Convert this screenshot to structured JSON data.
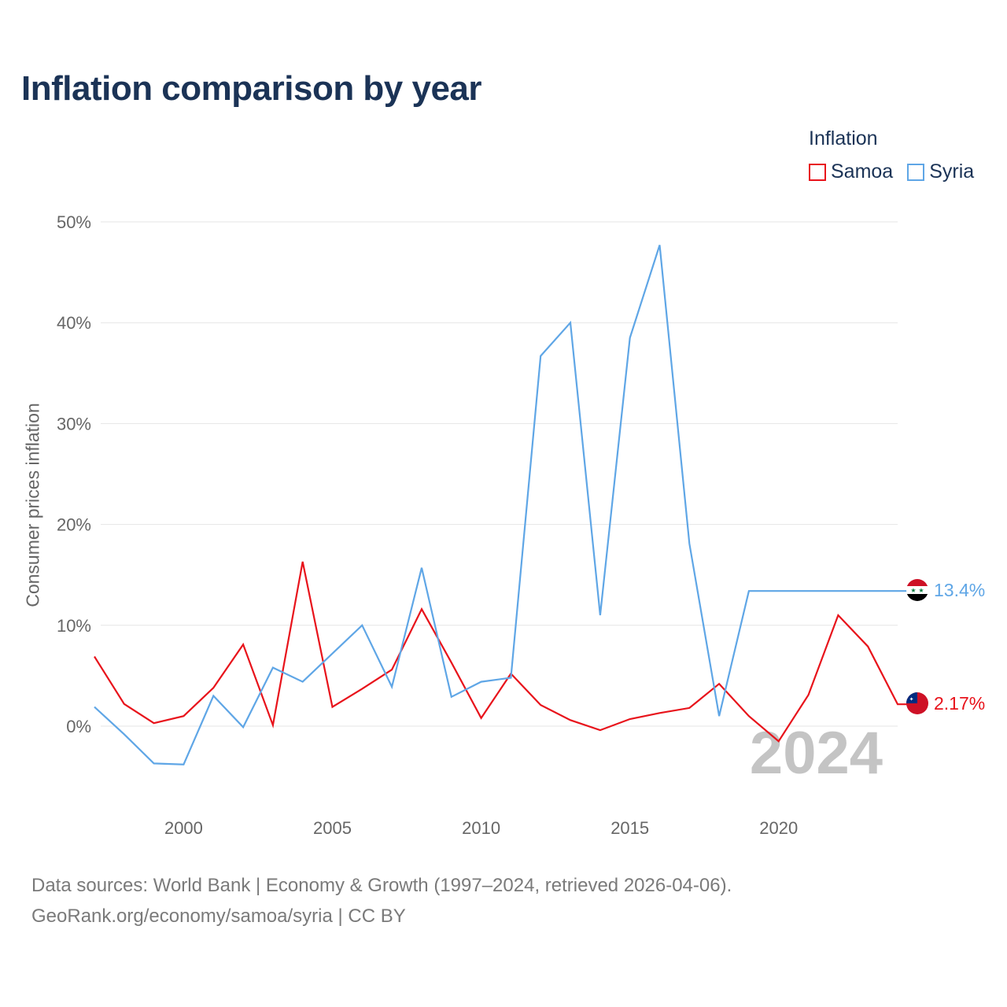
{
  "title": "Inflation comparison by year",
  "legend": {
    "title": "Inflation",
    "items": [
      {
        "label": "Samoa",
        "color": "#e8131b"
      },
      {
        "label": "Syria",
        "color": "#5fa6e6"
      }
    ]
  },
  "chart_data": {
    "type": "line",
    "title": "Inflation comparison by year",
    "xlabel": "",
    "ylabel": "Consumer prices inflation",
    "x": [
      1997,
      1998,
      1999,
      2000,
      2001,
      2002,
      2003,
      2004,
      2005,
      2006,
      2007,
      2008,
      2009,
      2010,
      2011,
      2012,
      2013,
      2014,
      2015,
      2016,
      2017,
      2018,
      2019,
      2020,
      2021,
      2022,
      2023,
      2024
    ],
    "series": [
      {
        "name": "Samoa",
        "color": "#e8131b",
        "values": [
          6.9,
          2.2,
          0.3,
          1.0,
          3.8,
          8.1,
          0.1,
          16.3,
          1.9,
          3.7,
          5.6,
          11.6,
          6.3,
          0.8,
          5.2,
          2.1,
          0.6,
          -0.4,
          0.7,
          1.3,
          1.8,
          4.2,
          1.0,
          -1.5,
          3.1,
          11.0,
          7.9,
          2.17
        ],
        "end_label": "2.17%"
      },
      {
        "name": "Syria",
        "color": "#5fa6e6",
        "values": [
          1.9,
          -0.8,
          -3.7,
          -3.8,
          3.0,
          -0.1,
          5.8,
          4.4,
          7.2,
          10.0,
          3.9,
          15.7,
          2.9,
          4.4,
          4.8,
          36.7,
          40.0,
          11.0,
          38.5,
          47.7,
          18.1,
          1.0,
          13.4,
          null,
          null,
          null,
          null,
          13.4
        ],
        "end_label": "13.4%"
      }
    ],
    "ylim": [
      -8,
      50
    ],
    "y_ticks": [
      0,
      10,
      20,
      30,
      40,
      50
    ],
    "y_tick_labels": [
      "0%",
      "10%",
      "20%",
      "30%",
      "40%",
      "50%"
    ],
    "x_ticks": [
      2000,
      2005,
      2010,
      2015,
      2020
    ],
    "x_tick_labels": [
      "2000",
      "2005",
      "2010",
      "2015",
      "2020"
    ],
    "grid": true,
    "legend_position": "top-right",
    "year_overlay": "2024"
  },
  "footer": {
    "line1": "Data sources: World Bank | Economy & Growth (1997–2024, retrieved 2026-04-06).",
    "line2": "GeoRank.org/economy/samoa/syria | CC BY"
  },
  "flags": {
    "samoa": "samoa-flag-icon",
    "syria": "syria-flag-icon"
  }
}
